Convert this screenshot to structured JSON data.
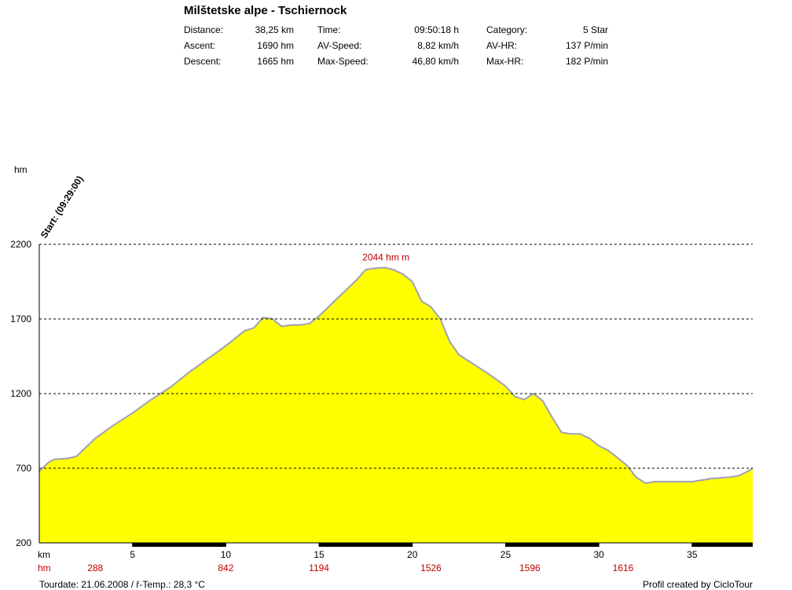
{
  "header": {
    "title": "Milštetske alpe - Tschiernock",
    "stats": [
      {
        "label": "Distance:",
        "value": "38,25 km"
      },
      {
        "label": "Ascent:",
        "value": "1690 hm"
      },
      {
        "label": "Descent:",
        "value": "1665 hm"
      },
      {
        "label": "Time:",
        "value": "09:50:18 h"
      },
      {
        "label": "AV-Speed:",
        "value": "8,82 km/h"
      },
      {
        "label": "Max-Speed:",
        "value": "46,80 km/h"
      },
      {
        "label": "Category:",
        "value": "5 Star"
      },
      {
        "label": "AV-HR:",
        "value": "137 P/min"
      },
      {
        "label": "Max-HR:",
        "value": "182 P/min"
      }
    ]
  },
  "footer": {
    "tourdate": "Tourdate: 21.06.2008  /  ř-Temp.: 28,3 °C",
    "credit": "Profil created by CicloTour"
  },
  "colors": {
    "fill": "#ffff00",
    "line": "#a0a0b8",
    "accent": "#c00000",
    "grid": "#000000"
  },
  "chart_data": {
    "type": "area",
    "ylabel": "hm",
    "xlabel": "km",
    "xlim": [
      0,
      38.25
    ],
    "ylim": [
      200,
      2200
    ],
    "yticks": [
      200,
      700,
      1200,
      1700,
      2200
    ],
    "xticks": [
      5,
      10,
      15,
      20,
      25,
      30,
      35
    ],
    "start_label": "Start: (09:29:00)",
    "max_label": "2044 hm m",
    "max_point": [
      18.5,
      2044
    ],
    "row_label": "hm",
    "row_values": [
      {
        "km": 3,
        "value": "288"
      },
      {
        "km": 10,
        "value": "842"
      },
      {
        "km": 15,
        "value": "1194"
      },
      {
        "km": 21,
        "value": "1526"
      },
      {
        "km": 26.3,
        "value": "1596"
      },
      {
        "km": 31.3,
        "value": "1616"
      }
    ],
    "series": [
      {
        "x": [
          0,
          0.5,
          0.8,
          1.5,
          2,
          2.5,
          3,
          4,
          5,
          6,
          7,
          8,
          9,
          10,
          11,
          11.5,
          12,
          12.5,
          13,
          13.5,
          14,
          14.5,
          15,
          16,
          17,
          17.5,
          18,
          18.5,
          19,
          19.5,
          20,
          20.5,
          21,
          21.5,
          22,
          22.5,
          23,
          24,
          25,
          25.5,
          26,
          26.5,
          27,
          27.5,
          28,
          28.5,
          29,
          29.5,
          30,
          30.5,
          31,
          31.5,
          32,
          32.5,
          33,
          34,
          35,
          35.5,
          36,
          37,
          37.5,
          38,
          38.25
        ],
        "y": [
          680,
          740,
          760,
          765,
          780,
          840,
          900,
          990,
          1070,
          1160,
          1240,
          1340,
          1430,
          1520,
          1620,
          1640,
          1710,
          1700,
          1650,
          1660,
          1660,
          1670,
          1720,
          1840,
          1960,
          2030,
          2040,
          2044,
          2030,
          2000,
          1950,
          1820,
          1780,
          1700,
          1550,
          1460,
          1420,
          1340,
          1250,
          1180,
          1160,
          1200,
          1150,
          1040,
          940,
          930,
          930,
          900,
          850,
          820,
          770,
          720,
          640,
          600,
          610,
          610,
          610,
          620,
          630,
          640,
          650,
          680,
          700
        ]
      }
    ]
  }
}
